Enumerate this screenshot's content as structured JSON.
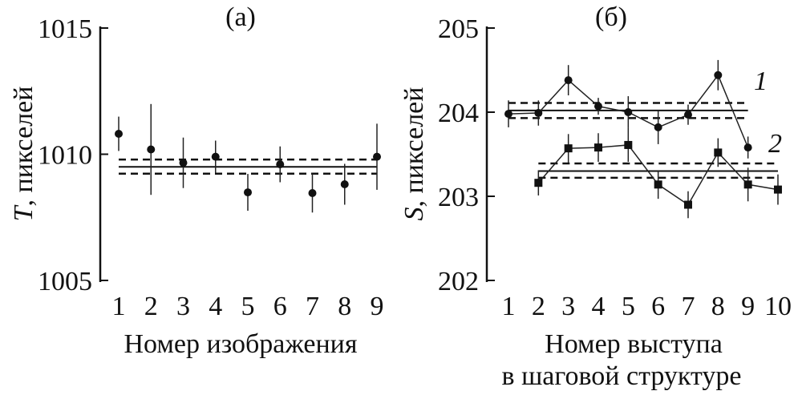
{
  "chart_data": [
    {
      "type": "scatter",
      "title": "(а)",
      "xlabel": "Номер изображения",
      "ylabel_var": "T",
      "ylabel_unit": ", пикселей",
      "xlim": [
        0.45,
        9
      ],
      "ylim": [
        1005,
        1015
      ],
      "xticks": [
        1,
        2,
        3,
        4,
        5,
        6,
        7,
        8,
        9
      ],
      "yticks": [
        1005,
        1010,
        1015
      ],
      "grid": false,
      "series": [
        {
          "x": [
            1,
            2,
            3,
            4,
            5,
            6,
            7,
            8,
            9
          ],
          "y": [
            1010.81,
            1010.19,
            1009.66,
            1009.9,
            1008.49,
            1009.6,
            1008.46,
            1008.81,
            1009.9
          ],
          "err": [
            0.68,
            1.8,
            1.0,
            0.64,
            0.73,
            0.71,
            0.77,
            0.81,
            1.31
          ],
          "marker": "circle"
        }
      ],
      "mean_lines": [
        {
          "mean": 1009.5,
          "lower": 1009.23,
          "upper": 1009.79,
          "x_from": 1,
          "x_to": 9
        }
      ]
    },
    {
      "type": "line",
      "title": "(б)",
      "xlabel_line1": "Номер выступа",
      "xlabel_line2": "в шаговой структуре",
      "ylabel_var": "S",
      "ylabel_unit": ", пикселей",
      "xlim": [
        0.3,
        10
      ],
      "ylim": [
        202,
        205
      ],
      "xticks": [
        1,
        2,
        3,
        4,
        5,
        6,
        7,
        8,
        9,
        10
      ],
      "yticks": [
        202,
        203,
        204,
        205
      ],
      "grid": false,
      "series": [
        {
          "name": "1",
          "marker": "circle",
          "x": [
            1,
            2,
            3,
            4,
            5,
            6,
            7,
            8,
            9
          ],
          "y": [
            203.98,
            203.99,
            204.38,
            204.07,
            204.0,
            203.82,
            203.97,
            204.44,
            203.58
          ],
          "err": [
            0.16,
            0.15,
            0.18,
            0.1,
            0.19,
            0.2,
            0.12,
            0.18,
            0.13
          ]
        },
        {
          "name": "2",
          "marker": "square",
          "x": [
            2,
            3,
            4,
            5,
            6,
            7,
            8,
            9,
            10
          ],
          "y": [
            203.16,
            203.57,
            203.58,
            203.61,
            203.14,
            202.9,
            203.52,
            203.14,
            203.08
          ],
          "err": [
            0.15,
            0.17,
            0.17,
            0.2,
            0.17,
            0.16,
            0.17,
            0.2,
            0.18
          ]
        }
      ],
      "mean_lines": [
        {
          "mean": 204.02,
          "lower": 203.93,
          "upper": 204.11,
          "x_from": 1,
          "x_to": 9
        },
        {
          "mean": 203.3,
          "lower": 203.22,
          "upper": 203.39,
          "x_from": 2,
          "x_to": 10
        }
      ]
    }
  ]
}
